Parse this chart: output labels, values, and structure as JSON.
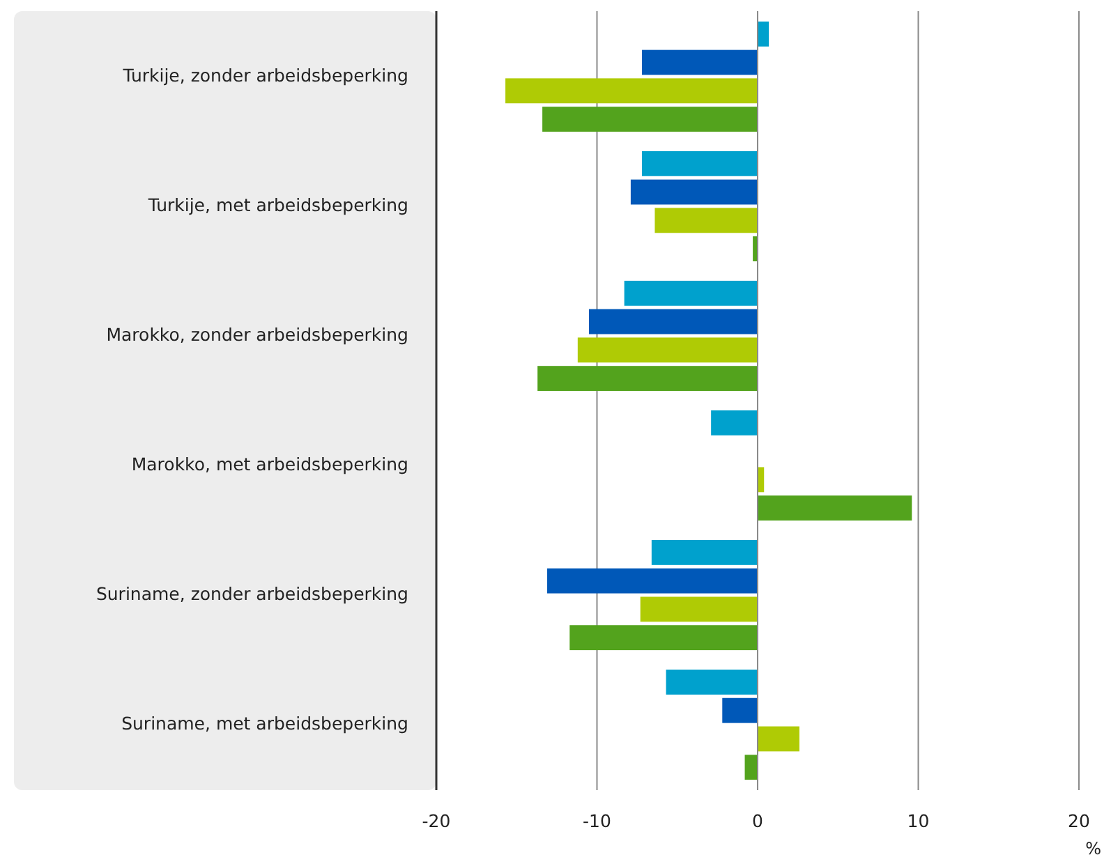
{
  "chart_data": {
    "type": "bar",
    "orientation": "horizontal",
    "xlabel": "%",
    "categories": [
      "Turkije, zonder arbeidsbeperking",
      "Turkije, met arbeidsbeperking",
      "Marokko, zonder arbeidsbeperking",
      "Marokko, met arbeidsbeperking",
      "Suriname, zonder arbeidsbeperking",
      "Suriname, met arbeidsbeperking"
    ],
    "series": [
      {
        "color": "#00a1cd",
        "values": [
          0.7,
          -7.2,
          -8.3,
          -2.9,
          -6.6,
          -5.7
        ]
      },
      {
        "color": "#0058b8",
        "values": [
          -7.2,
          -7.9,
          -10.5,
          null,
          -13.1,
          -2.2
        ]
      },
      {
        "color": "#afcb05",
        "values": [
          -15.7,
          -6.4,
          -11.2,
          0.4,
          -7.3,
          2.6
        ]
      },
      {
        "color": "#53a31d",
        "values": [
          -13.4,
          -0.3,
          -13.7,
          9.6,
          -11.7,
          -0.8
        ]
      }
    ],
    "xlim": [
      -20,
      20
    ],
    "xticks": [
      -20,
      -10,
      0,
      10,
      20
    ],
    "grid": "x"
  }
}
